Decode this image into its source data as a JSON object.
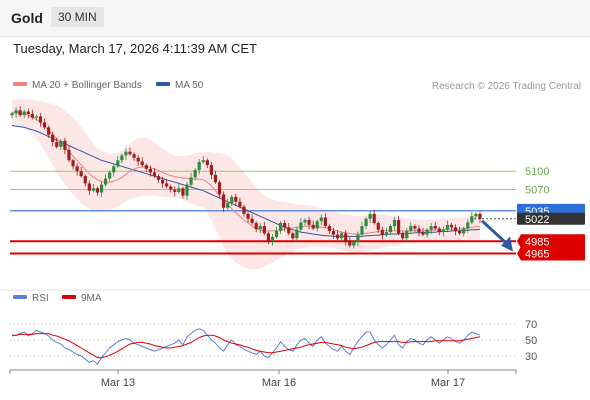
{
  "header": {
    "instrument": "Gold",
    "timeframe": "30 MIN"
  },
  "timestamp": "Tuesday, March 17, 2026 4:11:39 AM CET",
  "legend": {
    "ma20": {
      "label": "MA 20 + Bollinger Bands",
      "color": "#f08080"
    },
    "ma50": {
      "label": "MA 50",
      "color": "#2c5aa0"
    },
    "rsi": {
      "label": "RSI",
      "color": "#5b7fd6"
    },
    "ma9": {
      "label": "9MA",
      "color": "#dd0000"
    }
  },
  "credit": "Research © 2026 Trading Central",
  "chart_data": [
    {
      "type": "candlestick",
      "x_ticks": [
        "Mar 13",
        "Mar 16",
        "Mar 17"
      ],
      "ylim": [
        4910,
        5230
      ],
      "levels": [
        {
          "label": "5100",
          "value": 5100,
          "color": "#9ccc6b",
          "style": "resistance"
        },
        {
          "label": "5070",
          "value": 5070,
          "color": "#9ccc6b",
          "style": "resistance"
        },
        {
          "label": "5035",
          "value": 5035,
          "color": "#2c6fd6",
          "style": "pivot"
        },
        {
          "label": "5022",
          "value": 5022,
          "color": "#333333",
          "style": "last-price"
        },
        {
          "label": "4985",
          "value": 4985,
          "color": "#dd0000",
          "style": "support"
        },
        {
          "label": "4965",
          "value": 4965,
          "color": "#dd0000",
          "style": "support"
        }
      ],
      "close": [
        5195,
        5200,
        5192,
        5198,
        5194,
        5188,
        5190,
        5180,
        5172,
        5160,
        5148,
        5140,
        5150,
        5135,
        5118,
        5108,
        5100,
        5092,
        5080,
        5068,
        5072,
        5065,
        5078,
        5088,
        5098,
        5108,
        5118,
        5126,
        5132,
        5128,
        5122,
        5116,
        5110,
        5104,
        5098,
        5092,
        5086,
        5080,
        5075,
        5070,
        5066,
        5072,
        5060,
        5078,
        5090,
        5102,
        5115,
        5118,
        5110,
        5094,
        5082,
        5062,
        5040,
        5048,
        5058,
        5050,
        5042,
        5030,
        5022,
        5015,
        5005,
        5010,
        4998,
        4985,
        4992,
        5002,
        5015,
        5008,
        4998,
        4990,
        5004,
        5016,
        5020,
        5012,
        5006,
        5018,
        5024,
        5010,
        5002,
        4996,
        4990,
        4998,
        4985,
        4978,
        4984,
        4996,
        5010,
        5022,
        5030,
        5015,
        5004,
        4995,
        5000,
        5010,
        5020,
        4998,
        4990,
        5002,
        5010,
        5006,
        5000,
        4996,
        5004,
        5010,
        5006,
        5000,
        5004,
        5012,
        5008,
        5002,
        4998,
        5006,
        5016,
        5026,
        5030,
        5022
      ],
      "ma20": [
        5196,
        5196,
        5195,
        5194,
        5192,
        5189,
        5185,
        5180,
        5174,
        5167,
        5160,
        5153,
        5146,
        5139,
        5132,
        5125,
        5118,
        5110,
        5103,
        5096,
        5090,
        5086,
        5083,
        5082,
        5082,
        5084,
        5086,
        5090,
        5095,
        5100,
        5104,
        5106,
        5107,
        5107,
        5106,
        5104,
        5101,
        5098,
        5095,
        5093,
        5091,
        5090,
        5089,
        5088,
        5087,
        5087,
        5087,
        5086,
        5082,
        5076,
        5068,
        5060,
        5052,
        5045,
        5038,
        5032,
        5026,
        5020,
        5015,
        5010,
        5006,
        5003,
        5002,
        5002,
        5002,
        5003,
        5004,
        5005,
        5006,
        5007,
        5008,
        5009,
        5010,
        5010,
        5010,
        5009,
        5008,
        5007,
        5006,
        5004,
        5002,
        5000,
        4999,
        4998,
        4997,
        4997,
        4997,
        4998,
        4999,
        5000,
        5001,
        5002,
        5002,
        5002,
        5002,
        5002,
        5002,
        5002,
        5002,
        5002,
        5002,
        5002,
        5002,
        5003,
        5003,
        5004,
        5004,
        5005,
        5005,
        5005,
        5005,
        5006,
        5007,
        5008,
        5009,
        5010
      ],
      "ma50": [
        5175,
        5174,
        5173,
        5172,
        5170,
        5168,
        5166,
        5163,
        5160,
        5157,
        5154,
        5151,
        5148,
        5145,
        5142,
        5139,
        5136,
        5133,
        5130,
        5127,
        5124,
        5121,
        5118,
        5116,
        5114,
        5112,
        5110,
        5108,
        5106,
        5104,
        5102,
        5100,
        5098,
        5096,
        5094,
        5092,
        5090,
        5088,
        5086,
        5084,
        5082,
        5080,
        5078,
        5076,
        5074,
        5072,
        5070,
        5068,
        5065,
        5062,
        5059,
        5056,
        5053,
        5050,
        5047,
        5044,
        5041,
        5038,
        5035,
        5032,
        5029,
        5026,
        5023,
        5020,
        5017,
        5014,
        5011,
        5008,
        5006,
        5004,
        5002,
        5000,
        4999,
        4998,
        4997,
        4996,
        4995,
        4994,
        4994,
        4993,
        4993,
        4993,
        4993,
        4993,
        4993,
        4993,
        4993,
        4994,
        4994,
        4995,
        4995,
        4996,
        4996,
        4997,
        4997,
        4997,
        4998,
        4998,
        4998,
        4999,
        4999,
        4999,
        5000,
        5000,
        5000,
        5001,
        5001,
        5001,
        5002,
        5002,
        5002,
        5003,
        5003,
        5004,
        5004,
        5005
      ],
      "bb_width": [
        22,
        22,
        23,
        24,
        26,
        28,
        31,
        35,
        40,
        45,
        50,
        55,
        58,
        60,
        62,
        63,
        63,
        62,
        60,
        58,
        55,
        52,
        50,
        48,
        46,
        45,
        44,
        44,
        45,
        46,
        47,
        48,
        48,
        47,
        46,
        44,
        42,
        40,
        38,
        36,
        35,
        35,
        36,
        38,
        40,
        42,
        44,
        46,
        50,
        55,
        62,
        70,
        76,
        80,
        82,
        82,
        80,
        78,
        75,
        71,
        67,
        63,
        59,
        55,
        52,
        49,
        46,
        44,
        42,
        40,
        38,
        36,
        35,
        34,
        33,
        32,
        31,
        30,
        30,
        30,
        30,
        30,
        30,
        30,
        30,
        30,
        30,
        30,
        30,
        29,
        28,
        27,
        26,
        25,
        24,
        23,
        22,
        21,
        20,
        20,
        19,
        19,
        19,
        18,
        18,
        18,
        18,
        18,
        18,
        18,
        18,
        18,
        19,
        20,
        21,
        22
      ]
    },
    {
      "type": "line",
      "title": "RSI",
      "ylim": [
        15,
        85
      ],
      "y_ticks": [
        70,
        50,
        30
      ],
      "series": [
        {
          "name": "RSI",
          "values": [
            55,
            56,
            58,
            60,
            55,
            58,
            62,
            60,
            58,
            55,
            50,
            47,
            45,
            40,
            38,
            35,
            32,
            30,
            26,
            22,
            24,
            20,
            28,
            34,
            40,
            44,
            48,
            50,
            52,
            50,
            46,
            44,
            42,
            40,
            38,
            36,
            38,
            40,
            42,
            44,
            46,
            50,
            44,
            54,
            58,
            62,
            64,
            62,
            56,
            50,
            46,
            40,
            36,
            44,
            50,
            44,
            42,
            38,
            36,
            34,
            32,
            36,
            30,
            28,
            34,
            40,
            48,
            42,
            38,
            36,
            44,
            50,
            52,
            46,
            42,
            50,
            54,
            46,
            42,
            38,
            36,
            42,
            36,
            32,
            40,
            48,
            54,
            60,
            60,
            50,
            44,
            40,
            44,
            50,
            56,
            44,
            40,
            48,
            52,
            50,
            46,
            44,
            50,
            54,
            50,
            46,
            50,
            54,
            52,
            48,
            46,
            50,
            56,
            60,
            58,
            56
          ]
        },
        {
          "name": "9MA",
          "values": [
            56,
            56,
            57,
            57,
            57,
            57,
            58,
            58,
            58,
            58,
            56,
            55,
            53,
            51,
            49,
            46,
            43,
            40,
            37,
            34,
            31,
            28,
            28,
            29,
            31,
            33,
            36,
            39,
            42,
            45,
            46,
            47,
            47,
            46,
            45,
            43,
            42,
            41,
            40,
            40,
            41,
            42,
            43,
            45,
            47,
            50,
            53,
            55,
            56,
            56,
            55,
            53,
            50,
            48,
            46,
            45,
            44,
            42,
            41,
            39,
            37,
            36,
            35,
            34,
            34,
            35,
            36,
            37,
            38,
            39,
            40,
            41,
            43,
            44,
            45,
            46,
            47,
            47,
            46,
            45,
            44,
            43,
            41,
            40,
            39,
            40,
            41,
            43,
            45,
            47,
            48,
            48,
            48,
            48,
            48,
            48,
            47,
            47,
            48,
            48,
            48,
            48,
            48,
            48,
            49,
            49,
            49,
            49,
            49,
            49,
            49,
            50,
            51,
            52,
            53,
            54
          ]
        }
      ]
    }
  ]
}
